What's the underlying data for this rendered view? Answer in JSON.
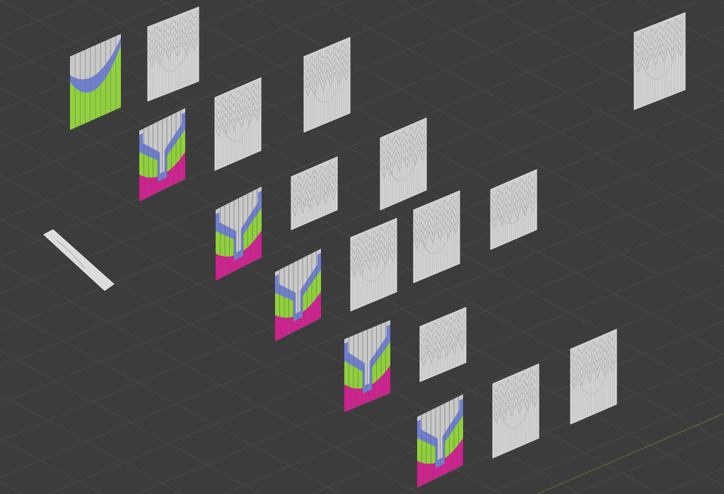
{
  "viewport": {
    "background_color": "#3c3c3c",
    "grid_color": "#4a4a4a",
    "axis_color": "#5f7a3a"
  },
  "colors": {
    "panel_grey": "#c9c9c9",
    "relief_grey": "#d2d2d2",
    "band_blue": "#6f7fd0",
    "zone_green": "#8fd13a",
    "zone_magenta": "#d01f8f"
  }
}
